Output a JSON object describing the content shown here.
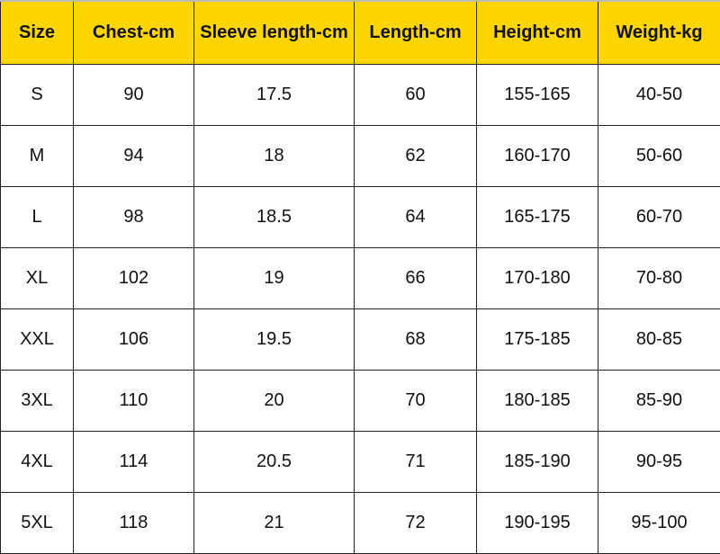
{
  "colors": {
    "header_bg": "#FFD500",
    "border": "#222222"
  },
  "headers": [
    "Size",
    "Chest-cm",
    "Sleeve length-cm",
    "Length-cm",
    "Height-cm",
    "Weight-kg"
  ],
  "rows": [
    [
      "S",
      "90",
      "17.5",
      "60",
      "155-165",
      "40-50"
    ],
    [
      "M",
      "94",
      "18",
      "62",
      "160-170",
      "50-60"
    ],
    [
      "L",
      "98",
      "18.5",
      "64",
      "165-175",
      "60-70"
    ],
    [
      "XL",
      "102",
      "19",
      "66",
      "170-180",
      "70-80"
    ],
    [
      "XXL",
      "106",
      "19.5",
      "68",
      "175-185",
      "80-85"
    ],
    [
      "3XL",
      "110",
      "20",
      "70",
      "180-185",
      "85-90"
    ],
    [
      "4XL",
      "114",
      "20.5",
      "71",
      "185-190",
      "90-95"
    ],
    [
      "5XL",
      "118",
      "21",
      "72",
      "190-195",
      "95-100"
    ]
  ]
}
